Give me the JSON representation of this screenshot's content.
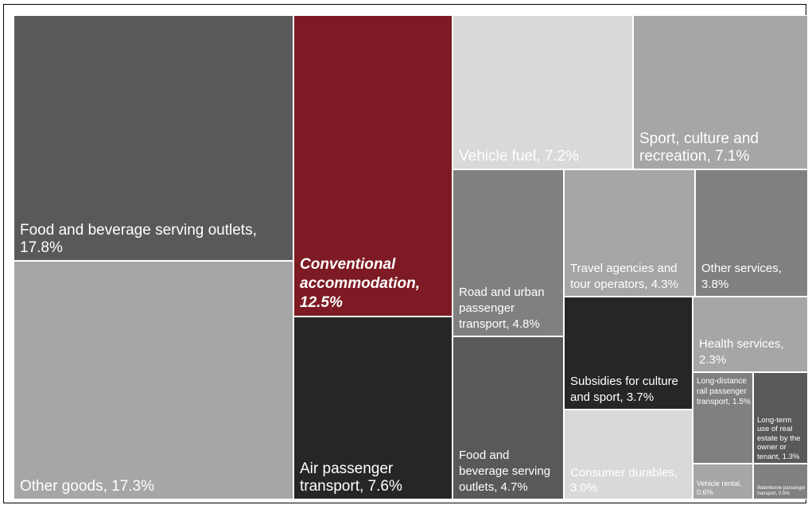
{
  "chart_data": {
    "type": "treemap",
    "title": "",
    "items": [
      {
        "label": "Food and beverage serving outlets, 17.8%",
        "name": "Food and beverage serving outlets",
        "value": 17.8,
        "color": "#595959"
      },
      {
        "label": "Other goods, 17.3%",
        "name": "Other goods",
        "value": 17.3,
        "color": "#a6a6a6"
      },
      {
        "label": "Conventional accommodation, 12.5%",
        "name": "Conventional accommodation",
        "value": 12.5,
        "color": "#7e1a23",
        "emphasis": true
      },
      {
        "label": "Air passenger transport, 7.6%",
        "name": "Air passenger transport",
        "value": 7.6,
        "color": "#262626"
      },
      {
        "label": "Vehicle fuel, 7.2%",
        "name": "Vehicle fuel",
        "value": 7.2,
        "color": "#d9d9d9"
      },
      {
        "label": "Sport, culture and recreation, 7.1%",
        "name": "Sport, culture and recreation",
        "value": 7.1,
        "color": "#a6a6a6"
      },
      {
        "label": "Road and urban passenger transport, 4.8%",
        "name": "Road and urban passenger transport",
        "value": 4.8,
        "color": "#808080"
      },
      {
        "label": "Food and beverage serving outlets, 4.7%",
        "name": "Food and beverage serving outlets",
        "value": 4.7,
        "color": "#595959"
      },
      {
        "label": "Travel agencies and tour operators, 4.3%",
        "name": "Travel agencies and tour operators",
        "value": 4.3,
        "color": "#a6a6a6"
      },
      {
        "label": "Other services, 3.8%",
        "name": "Other services",
        "value": 3.8,
        "color": "#808080"
      },
      {
        "label": "Subsidies for culture and sport, 3.7%",
        "name": "Subsidies for culture and sport",
        "value": 3.7,
        "color": "#262626"
      },
      {
        "label": "Consumer durables, 3.0%",
        "name": "Consumer durables",
        "value": 3.0,
        "color": "#d9d9d9"
      },
      {
        "label": "Health services, 2.3%",
        "name": "Health services",
        "value": 2.3,
        "color": "#a6a6a6"
      },
      {
        "label": "Long-distance rail passenger transport, 1.5%",
        "name": "Long-distance rail passenger transport",
        "value": 1.5,
        "color": "#808080"
      },
      {
        "label": "Long-term use of real estate by the owner or tenant, 1.3%",
        "name": "Long-term use of real estate by the owner or tenant",
        "value": 1.3,
        "color": "#595959"
      },
      {
        "label": "Vehicle rental, 0.6%",
        "name": "Vehicle rental",
        "value": 0.6,
        "color": "#a6a6a6"
      },
      {
        "label": "Waterborne passenger transport, 0.5%",
        "name": "Waterborne passenger transport",
        "value": 0.5,
        "color": "#808080"
      }
    ]
  }
}
